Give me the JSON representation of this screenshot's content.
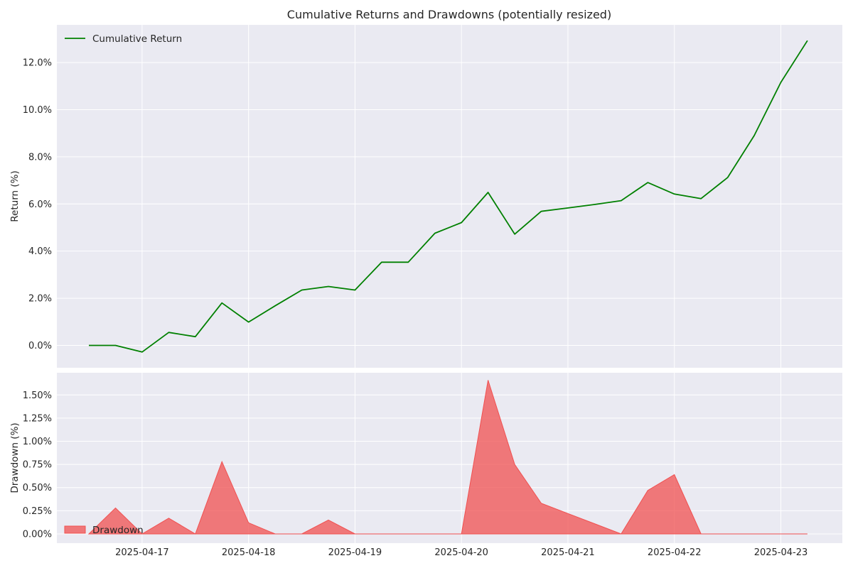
{
  "chart_data": [
    {
      "type": "line",
      "title": "Cumulative Returns and Drawdowns (potentially resized)",
      "ylabel": "Return (%)",
      "ylim": [
        -0.95,
        13.6
      ],
      "yticks": [
        "0.0%",
        "2.0%",
        "4.0%",
        "6.0%",
        "8.0%",
        "10.0%",
        "12.0%"
      ],
      "ytick_values": [
        0,
        2,
        4,
        6,
        8,
        10,
        12
      ],
      "xticks": [
        "2025-04-17",
        "2025-04-18",
        "2025-04-19",
        "2025-04-20",
        "2025-04-21",
        "2025-04-22",
        "2025-04-23"
      ],
      "xlim": [
        "2025-04-16T04:47",
        "2025-04-23T13:52"
      ],
      "grid": true,
      "legend_position": "top-left",
      "series": [
        {
          "name": "Cumulative Return",
          "color": "#008000",
          "x": [
            "2025-04-16T12:00",
            "2025-04-16T18:00",
            "2025-04-17T00:00",
            "2025-04-17T06:00",
            "2025-04-17T12:00",
            "2025-04-17T18:00",
            "2025-04-18T00:00",
            "2025-04-18T06:00",
            "2025-04-18T12:00",
            "2025-04-18T18:00",
            "2025-04-19T00:00",
            "2025-04-19T06:00",
            "2025-04-19T12:00",
            "2025-04-19T18:00",
            "2025-04-20T00:00",
            "2025-04-20T06:00",
            "2025-04-20T12:00",
            "2025-04-20T18:00",
            "2025-04-21T00:00",
            "2025-04-21T06:00",
            "2025-04-21T12:00",
            "2025-04-21T18:00",
            "2025-04-22T00:00",
            "2025-04-22T06:00",
            "2025-04-22T12:00",
            "2025-04-22T18:00",
            "2025-04-23T00:00",
            "2025-04-23T06:00"
          ],
          "values": [
            0.0,
            0.0,
            -0.28,
            0.55,
            0.37,
            1.8,
            0.99,
            1.68,
            2.35,
            2.5,
            2.35,
            3.53,
            3.53,
            4.76,
            5.21,
            6.49,
            4.72,
            5.69,
            5.83,
            5.98,
            6.14,
            6.91,
            6.42,
            6.23,
            7.12,
            8.9,
            11.16,
            12.93
          ]
        }
      ]
    },
    {
      "type": "area",
      "ylabel": "Drawdown (%)",
      "ylim": [
        -0.1,
        1.74
      ],
      "yticks": [
        "0.00%",
        "0.25%",
        "0.50%",
        "0.75%",
        "1.00%",
        "1.25%",
        "1.50%"
      ],
      "ytick_values": [
        0,
        0.25,
        0.5,
        0.75,
        1.0,
        1.25,
        1.5
      ],
      "xticks": [
        "2025-04-17",
        "2025-04-18",
        "2025-04-19",
        "2025-04-20",
        "2025-04-21",
        "2025-04-22",
        "2025-04-23"
      ],
      "xlim": [
        "2025-04-16T04:47",
        "2025-04-23T13:52"
      ],
      "grid": true,
      "legend_position": "bottom-left",
      "series": [
        {
          "name": "Drawdown",
          "color": "#f05050",
          "x": [
            "2025-04-16T12:00",
            "2025-04-16T18:00",
            "2025-04-17T00:00",
            "2025-04-17T06:00",
            "2025-04-17T12:00",
            "2025-04-17T18:00",
            "2025-04-18T00:00",
            "2025-04-18T06:00",
            "2025-04-18T12:00",
            "2025-04-18T18:00",
            "2025-04-19T00:00",
            "2025-04-19T06:00",
            "2025-04-19T12:00",
            "2025-04-19T18:00",
            "2025-04-20T00:00",
            "2025-04-20T06:00",
            "2025-04-20T12:00",
            "2025-04-20T18:00",
            "2025-04-21T00:00",
            "2025-04-21T06:00",
            "2025-04-21T12:00",
            "2025-04-21T18:00",
            "2025-04-22T00:00",
            "2025-04-22T06:00",
            "2025-04-22T12:00",
            "2025-04-22T18:00",
            "2025-04-23T00:00",
            "2025-04-23T06:00"
          ],
          "values": [
            0.0,
            0.28,
            0.0,
            0.17,
            0.0,
            0.78,
            0.12,
            0.0,
            0.0,
            0.15,
            0.0,
            0.0,
            0.0,
            0.0,
            0.0,
            1.66,
            0.75,
            0.33,
            0.22,
            0.11,
            0.0,
            0.47,
            0.64,
            0.0,
            0.0,
            0.0,
            0.0,
            0.0
          ]
        }
      ]
    }
  ]
}
